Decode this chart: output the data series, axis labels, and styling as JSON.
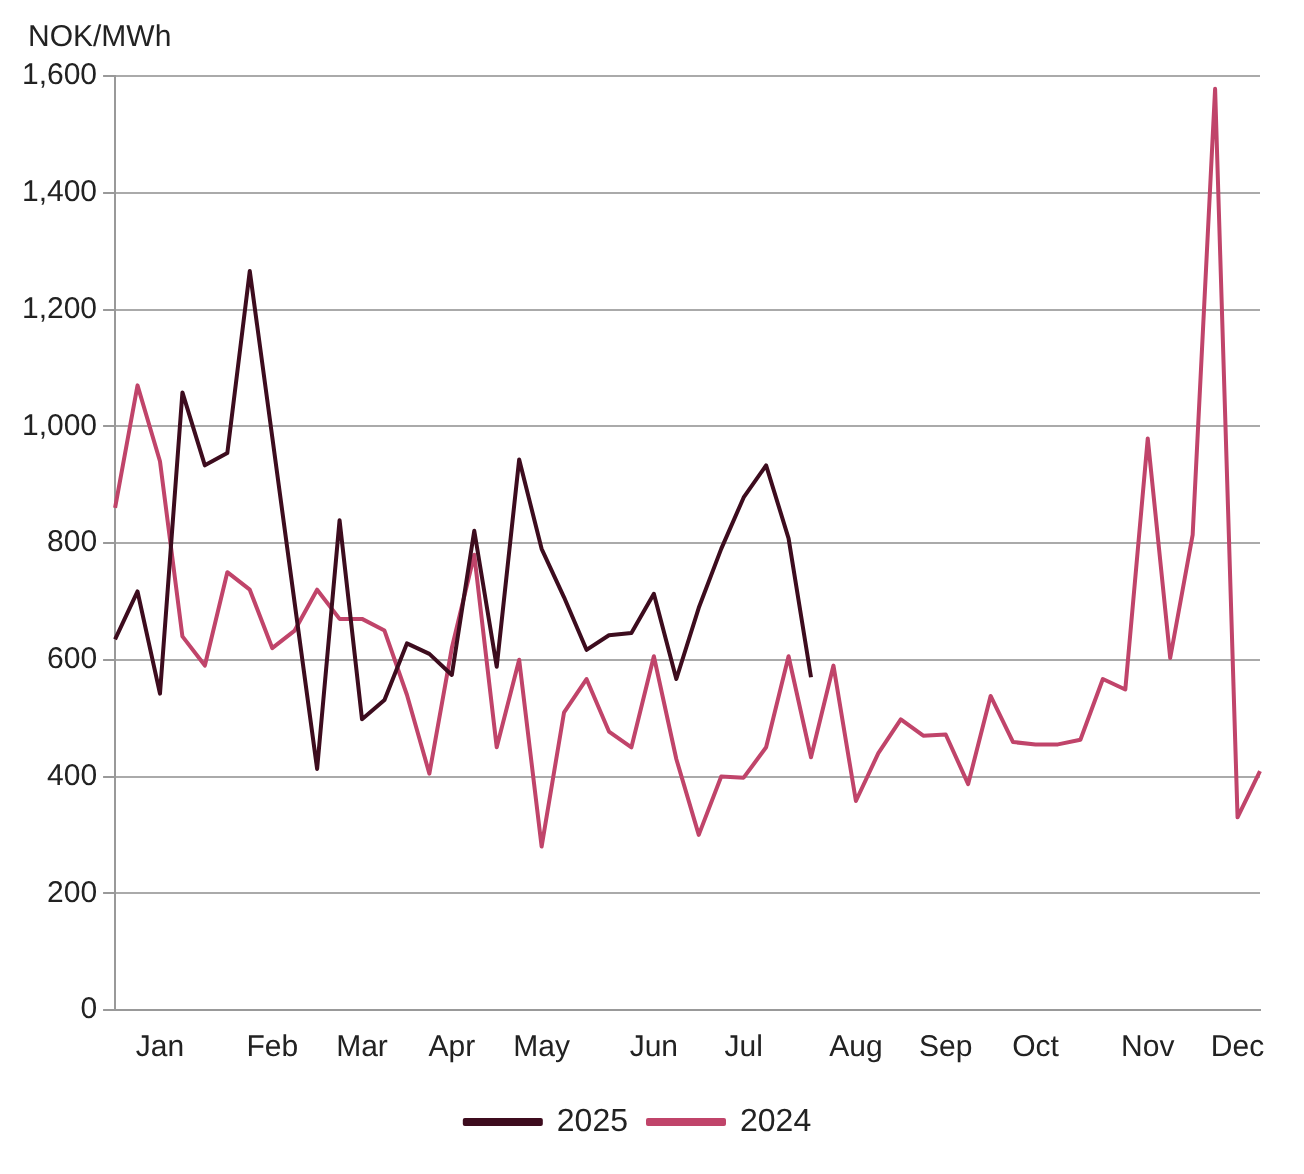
{
  "chart_data": {
    "type": "line",
    "ylabel": "NOK/MWh",
    "categories": [
      null,
      null,
      "Jan",
      null,
      null,
      null,
      null,
      "Feb",
      null,
      null,
      null,
      "Mar",
      null,
      null,
      null,
      "Apr",
      null,
      null,
      null,
      "May",
      null,
      null,
      null,
      null,
      "Jun",
      null,
      null,
      null,
      "Jul",
      null,
      null,
      null,
      null,
      "Aug",
      null,
      null,
      null,
      "Sep",
      null,
      null,
      null,
      "Oct",
      null,
      null,
      null,
      null,
      "Nov",
      null,
      null,
      null,
      "Dec",
      null
    ],
    "series": [
      {
        "name": "2025",
        "color": "#3d0c1e",
        "values": [
          635,
          717,
          542,
          1058,
          933,
          954,
          1266,
          982,
          697,
          413,
          839,
          498,
          531,
          628,
          610,
          574,
          821,
          588,
          943,
          790,
          707,
          617,
          642,
          646,
          713,
          567,
          689,
          790,
          878,
          933,
          808,
          570,
          null,
          null,
          null,
          null,
          null,
          null,
          null,
          null,
          null,
          null,
          null,
          null,
          null,
          null,
          null,
          null,
          null,
          null,
          null,
          null
        ]
      },
      {
        "name": "2024",
        "color": "#c0446a",
        "values": [
          860,
          1070,
          940,
          640,
          590,
          750,
          720,
          620,
          650,
          720,
          670,
          670,
          650,
          540,
          405,
          620,
          780,
          450,
          600,
          280,
          510,
          567,
          477,
          450,
          606,
          430,
          300,
          400,
          398,
          450,
          606,
          433,
          590,
          358,
          440,
          498,
          470,
          472,
          387,
          538,
          459,
          455,
          455,
          463,
          567,
          549,
          979,
          603,
          814,
          1578,
          330,
          409
        ]
      }
    ],
    "ylim": [
      0,
      1600
    ],
    "yticks": [
      {
        "value": 0,
        "label": "0"
      },
      {
        "value": 200,
        "label": "200"
      },
      {
        "value": 400,
        "label": "400"
      },
      {
        "value": 600,
        "label": "600"
      },
      {
        "value": 800,
        "label": "800"
      },
      {
        "value": 1000,
        "label": "1,000"
      },
      {
        "value": 1200,
        "label": "1,200"
      },
      {
        "value": 1400,
        "label": "1,400"
      },
      {
        "value": 1600,
        "label": "1,600"
      }
    ],
    "grid": "y",
    "legend": "bottom",
    "marker": "none",
    "line_style": "solid"
  }
}
